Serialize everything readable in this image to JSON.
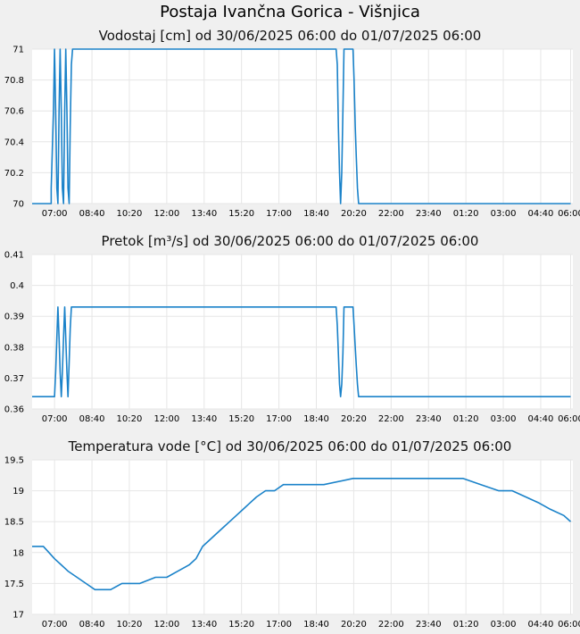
{
  "page_title": "Postaja Ivančna Gorica - Višnjica",
  "x_ticks": [
    "07:00",
    "08:40",
    "10:20",
    "12:00",
    "13:40",
    "15:20",
    "17:00",
    "18:40",
    "20:20",
    "22:00",
    "23:40",
    "01:20",
    "03:00",
    "04:40",
    "06:00"
  ],
  "colors": {
    "line": "#1a82c9",
    "grid": "#e6e6e6",
    "plot_bg": "#ffffff",
    "page_bg": "#f0f0f0"
  },
  "chart_data": [
    {
      "type": "line",
      "title": "Vodostaj [cm] od 30/06/2025 06:00 do 01/07/2025 06:00",
      "x_unit": "hours since 30/06/2025 06:00",
      "ylim": [
        70,
        71
      ],
      "y_ticks": [
        "70",
        "70.2",
        "70.4",
        "70.6",
        "70.8",
        "71"
      ],
      "series": [
        {
          "x": [
            0,
            0.85,
            0.85,
            0.95,
            1.0,
            1.05,
            1.1,
            1.15,
            1.2,
            1.25,
            1.3,
            1.35,
            1.4,
            1.45,
            1.5,
            1.55,
            1.6,
            1.65,
            1.7,
            1.75,
            1.8,
            1.85,
            1.9,
            13.5,
            13.55,
            13.6,
            13.65,
            13.7,
            13.75,
            13.8,
            13.85,
            13.9,
            14.0,
            14.25,
            14.25,
            14.3,
            14.35,
            14.4,
            14.45,
            14.5,
            14.55,
            14.6,
            14.65,
            24
          ],
          "y": [
            70,
            70,
            70.1,
            70.6,
            71,
            70.6,
            70.1,
            70,
            70.6,
            71,
            70.6,
            70.1,
            70,
            70.6,
            71,
            70.6,
            70.1,
            70,
            70.5,
            70.9,
            71,
            71,
            71,
            71,
            71,
            70.9,
            70.5,
            70.2,
            70,
            70.2,
            70.6,
            71,
            71,
            71,
            71,
            71,
            70.8,
            70.5,
            70.3,
            70.1,
            70,
            70,
            70,
            70
          ]
        }
      ]
    },
    {
      "type": "line",
      "title": "Pretok [m³/s] od 30/06/2025 06:00 do 01/07/2025 06:00",
      "x_unit": "hours since 30/06/2025 06:00",
      "ylim": [
        0.36,
        0.41
      ],
      "y_ticks": [
        "0.36",
        "0.37",
        "0.38",
        "0.39",
        "0.4",
        "0.41"
      ],
      "series": [
        {
          "x": [
            0,
            1.0,
            1.05,
            1.1,
            1.15,
            1.2,
            1.25,
            1.3,
            1.35,
            1.4,
            1.45,
            1.5,
            1.55,
            1.6,
            1.65,
            1.7,
            1.75,
            1.8,
            1.85,
            1.9,
            13.5,
            13.55,
            13.6,
            13.65,
            13.7,
            13.75,
            13.8,
            13.85,
            13.9,
            14.0,
            14.25,
            14.3,
            14.35,
            14.4,
            14.45,
            14.5,
            14.55,
            14.6,
            14.65,
            24
          ],
          "y": [
            0.364,
            0.364,
            0.372,
            0.383,
            0.393,
            0.383,
            0.372,
            0.364,
            0.372,
            0.383,
            0.393,
            0.383,
            0.372,
            0.364,
            0.375,
            0.386,
            0.393,
            0.393,
            0.393,
            0.393,
            0.393,
            0.393,
            0.387,
            0.378,
            0.368,
            0.364,
            0.368,
            0.378,
            0.393,
            0.393,
            0.393,
            0.393,
            0.387,
            0.38,
            0.374,
            0.368,
            0.364,
            0.364,
            0.364,
            0.364
          ]
        }
      ]
    },
    {
      "type": "line",
      "title": "Temperatura vode [°C] od 30/06/2025 06:00 do 01/07/2025 06:00",
      "x_unit": "hours since 30/06/2025 06:00",
      "ylim": [
        17,
        19.5
      ],
      "y_ticks": [
        "17",
        "17.5",
        "18",
        "18.5",
        "19",
        "19.5"
      ],
      "series": [
        {
          "x": [
            0,
            0.5,
            0.75,
            1.0,
            1.3,
            1.6,
            2.0,
            2.4,
            2.8,
            3.5,
            4.0,
            4.8,
            5.5,
            6.0,
            6.5,
            7.0,
            7.3,
            7.6,
            7.9,
            8.2,
            8.5,
            8.8,
            9.1,
            9.4,
            9.7,
            10.0,
            10.4,
            10.8,
            11.2,
            11.6,
            12.4,
            13.0,
            14.3,
            19.2,
            20.0,
            20.8,
            21.4,
            22.0,
            22.6,
            23.1,
            23.7,
            24
          ],
          "y": [
            18.1,
            18.1,
            18.0,
            17.9,
            17.8,
            17.7,
            17.6,
            17.5,
            17.4,
            17.4,
            17.5,
            17.5,
            17.6,
            17.6,
            17.7,
            17.8,
            17.9,
            18.1,
            18.2,
            18.3,
            18.4,
            18.5,
            18.6,
            18.7,
            18.8,
            18.9,
            19.0,
            19.0,
            19.1,
            19.1,
            19.1,
            19.1,
            19.2,
            19.2,
            19.1,
            19.0,
            19.0,
            18.9,
            18.8,
            18.7,
            18.6,
            18.5
          ]
        }
      ]
    }
  ]
}
